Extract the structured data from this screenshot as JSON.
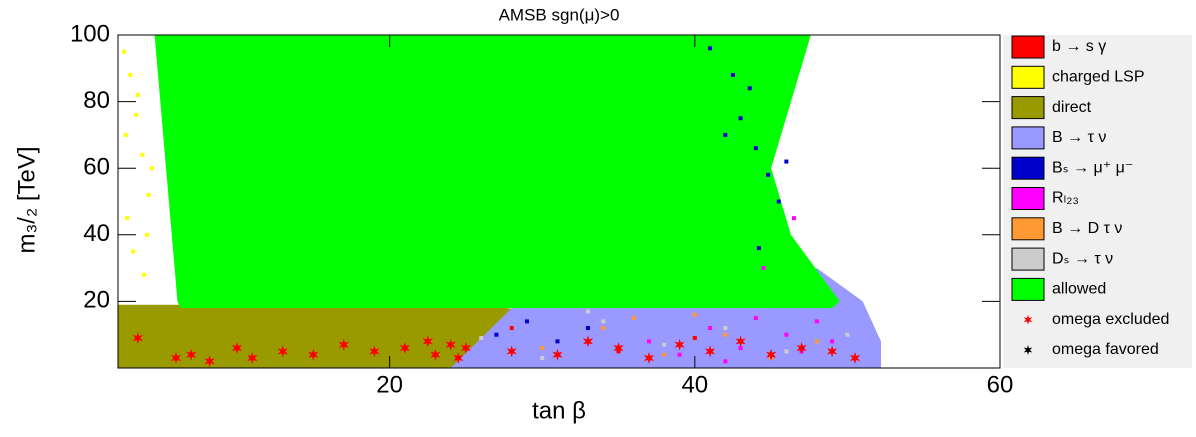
{
  "chart_data": {
    "type": "scatter",
    "title": "AMSB    sgn(μ)>0",
    "x_label": "tan β",
    "y_label": "m₃/₂ [TeV]",
    "xlim": [
      2.2,
      60
    ],
    "ylim": [
      0,
      100
    ],
    "xticks": [
      20,
      40,
      60
    ],
    "yticks": [
      20,
      40,
      60,
      80,
      100
    ],
    "legend": "right",
    "series": [
      {
        "name": "b → s γ",
        "color": "#ff0000",
        "marker": "square",
        "x": [
          28,
          35,
          40,
          45
        ],
        "y": [
          12,
          5,
          9,
          3
        ]
      },
      {
        "name": "charged LSP",
        "color": "#ffff00",
        "marker": "square",
        "x": [
          2.6,
          3.0,
          3.4,
          3.8,
          4.2,
          2.8,
          3.2,
          3.9,
          4.4,
          3.5,
          2.7,
          4.1
        ],
        "y": [
          95,
          88,
          76,
          64,
          52,
          45,
          35,
          28,
          60,
          82,
          70,
          40
        ]
      },
      {
        "name": "direct",
        "color": "#999900",
        "marker": "region",
        "x": [
          2.2,
          2.2,
          26,
          34,
          38,
          38
        ],
        "y": [
          0,
          19,
          19,
          14,
          4,
          0
        ]
      },
      {
        "name": "B → τ ν",
        "color": "#9999ff",
        "marker": "region",
        "x": [
          24,
          28,
          45,
          48,
          51,
          52.2,
          52.2
        ],
        "y": [
          0,
          18,
          18,
          30,
          20,
          8,
          0
        ]
      },
      {
        "name": "Bₛ → μ⁺ μ⁻",
        "color": "#0000cc",
        "marker": "square",
        "x": [
          41,
          42.5,
          43,
          44,
          44.8,
          45.5,
          42,
          43.6,
          46,
          44.2,
          27,
          29,
          31,
          33,
          35
        ],
        "y": [
          96,
          88,
          75,
          66,
          58,
          50,
          70,
          84,
          62,
          36,
          10,
          14,
          8,
          12,
          6
        ]
      },
      {
        "name": "Rₗ₂₃",
        "color": "#ff00ff",
        "marker": "square",
        "x": [
          37,
          39,
          41,
          43,
          44,
          45,
          46,
          47,
          48,
          49,
          46.5,
          44.5,
          42
        ],
        "y": [
          8,
          4,
          12,
          6,
          15,
          3,
          10,
          5,
          14,
          8,
          45,
          30,
          2
        ]
      },
      {
        "name": "B → D τ ν",
        "color": "#ff9933",
        "marker": "square",
        "x": [
          30,
          34,
          38,
          42,
          45,
          48,
          36,
          40
        ],
        "y": [
          6,
          12,
          4,
          10,
          3,
          8,
          15,
          16
        ]
      },
      {
        "name": "Dₛ → τ ν",
        "color": "#cccccc",
        "marker": "square",
        "x": [
          26,
          30,
          34,
          38,
          42,
          46,
          50,
          33
        ],
        "y": [
          9,
          3,
          14,
          7,
          12,
          5,
          10,
          17
        ]
      },
      {
        "name": "allowed",
        "color": "#00ff00",
        "marker": "region",
        "x": [
          4.6,
          47.6,
          45,
          46.3,
          49.5,
          49,
          6.3,
          6.1
        ],
        "y": [
          100,
          100,
          60,
          40,
          20,
          18,
          18,
          20
        ]
      },
      {
        "name": "omega excluded",
        "color": "#ff0000",
        "marker": "star",
        "x": [
          3.5,
          6,
          7,
          8.2,
          10,
          11,
          13,
          15,
          17,
          19,
          21,
          22.5,
          23,
          24,
          24.5,
          25,
          28,
          31,
          33,
          35,
          37,
          39,
          41,
          43,
          45,
          47,
          49,
          50.5
        ],
        "y": [
          9,
          3,
          4,
          2,
          6,
          3,
          5,
          4,
          7,
          5,
          6,
          8,
          4,
          7,
          3,
          6,
          5,
          4,
          8,
          6,
          3,
          7,
          5,
          8,
          4,
          6,
          5,
          3
        ]
      },
      {
        "name": "omega favored",
        "color": "#000000",
        "marker": "star",
        "x": [],
        "y": []
      }
    ]
  }
}
